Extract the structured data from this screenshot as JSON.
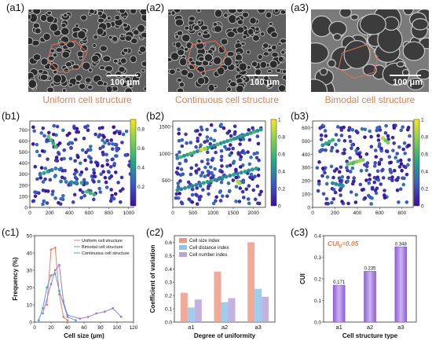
{
  "panels": {
    "a1": {
      "label": "(a1)",
      "scale": "100 μm",
      "caption": "Uniform cell structure"
    },
    "a2": {
      "label": "(a2)",
      "scale": "100 μm",
      "caption": "Continuous cell structure"
    },
    "a3": {
      "label": "(a3)",
      "scale": "100 μm",
      "caption": "Bimodal cell structure"
    },
    "b1": {
      "label": "(b1)"
    },
    "b2": {
      "label": "(b2)"
    },
    "b3": {
      "label": "(b3)"
    },
    "c1": {
      "label": "(c1)"
    },
    "c2": {
      "label": "(c2)"
    },
    "c3": {
      "label": "(c3)"
    }
  },
  "colors": {
    "viridis_low": "#3b0f9e",
    "viridis_mid": "#21a585",
    "viridis_high": "#f6e620",
    "bar_size": "#ef9a86",
    "bar_dist": "#8fc3ea",
    "bar_num": "#b9a3d9",
    "cui_bar": "#a77be3",
    "caption": "#d4845a"
  },
  "chart_data": [
    {
      "id": "b1",
      "type": "scatter",
      "xlim": [
        0,
        1050
      ],
      "ylim": [
        0,
        780
      ],
      "xticks": [
        "0",
        "200",
        "400",
        "600",
        "800",
        "1000"
      ],
      "yticks": [
        "0",
        "100",
        "200",
        "300",
        "400",
        "500",
        "600",
        "700"
      ],
      "colorbar": {
        "range": [
          0,
          0.9
        ],
        "ticks": [
          "0.2",
          "0.4",
          "0.6",
          "0.8"
        ]
      }
    },
    {
      "id": "b2",
      "type": "scatter",
      "xlim": [
        0,
        2300
      ],
      "ylim": [
        0,
        1600
      ],
      "xticks": [
        "0",
        "500",
        "1000",
        "1500",
        "2000"
      ],
      "yticks": [
        "500",
        "1000",
        "1500"
      ],
      "colorbar": {
        "range": [
          0,
          1.0
        ],
        "ticks": [
          "0",
          "0.2",
          "0.4",
          "0.6",
          "0.8",
          "1"
        ]
      }
    },
    {
      "id": "b3",
      "type": "scatter",
      "xlim": [
        0,
        900
      ],
      "ylim": [
        0,
        650
      ],
      "xticks": [
        "0",
        "200",
        "400",
        "600",
        "800"
      ],
      "yticks": [
        "0",
        "100",
        "200",
        "300",
        "400",
        "500",
        "600"
      ],
      "colorbar": {
        "range": [
          0,
          1.0
        ],
        "ticks": [
          "0",
          "0.2",
          "0.4",
          "0.6",
          "0.8",
          "1"
        ]
      }
    },
    {
      "id": "c1",
      "type": "line",
      "xlabel": "Cell size (μm)",
      "ylabel": "Frequency (%)",
      "xlim": [
        0,
        120
      ],
      "ylim": [
        0,
        50
      ],
      "xticks": [
        "0",
        "20",
        "40",
        "60",
        "80",
        "100",
        "120"
      ],
      "yticks": [
        "0",
        "10",
        "20",
        "30",
        "40",
        "50"
      ],
      "series": [
        {
          "name": "Uniform cell structure",
          "color": "#e8836a",
          "x": [
            15,
            20,
            25,
            30,
            35,
            40
          ],
          "y": [
            10,
            42,
            43,
            16,
            3,
            1
          ]
        },
        {
          "name": "Bimodal cell structure",
          "color": "#9a7fd0",
          "x": [
            10,
            20,
            25,
            30,
            35,
            40,
            55,
            65,
            75,
            85,
            95,
            105
          ],
          "y": [
            5,
            22,
            30,
            33,
            12,
            4,
            2,
            3,
            5,
            6,
            8,
            3
          ]
        },
        {
          "name": "Continuous cell structure",
          "color": "#5b9bd5",
          "x": [
            5,
            10,
            15,
            20,
            25,
            30,
            40,
            50
          ],
          "y": [
            1,
            8,
            20,
            27,
            28,
            18,
            3,
            1
          ]
        }
      ]
    },
    {
      "id": "c2",
      "type": "bar",
      "xlabel": "Degree of uniformity",
      "ylabel": "Coefficient of variation",
      "ylim": [
        0,
        0.65
      ],
      "yticks": [
        "0.0",
        "0.1",
        "0.2",
        "0.3",
        "0.4",
        "0.5",
        "0.6"
      ],
      "categories": [
        "a1",
        "a2",
        "a3"
      ],
      "series": [
        {
          "name": "Cell size index",
          "values": [
            0.22,
            0.38,
            0.6
          ]
        },
        {
          "name": "Cell distance index",
          "values": [
            0.11,
            0.15,
            0.25
          ]
        },
        {
          "name": "Cell number index",
          "values": [
            0.17,
            0.18,
            0.19
          ]
        }
      ]
    },
    {
      "id": "c3",
      "type": "bar",
      "xlabel": "Cell structure type",
      "ylabel": "CUI",
      "ylim": [
        0,
        0.4
      ],
      "yticks": [
        "0.0",
        "0.1",
        "0.2",
        "0.3",
        "0.4"
      ],
      "categories": [
        "a1",
        "a2",
        "a3"
      ],
      "values": [
        0.171,
        0.235,
        0.348
      ],
      "value_labels": [
        "0.171",
        "0.235",
        "0.348"
      ],
      "annotation": "CUI",
      "annotation_sub": "0",
      "annotation_rest": "=0.05"
    }
  ]
}
